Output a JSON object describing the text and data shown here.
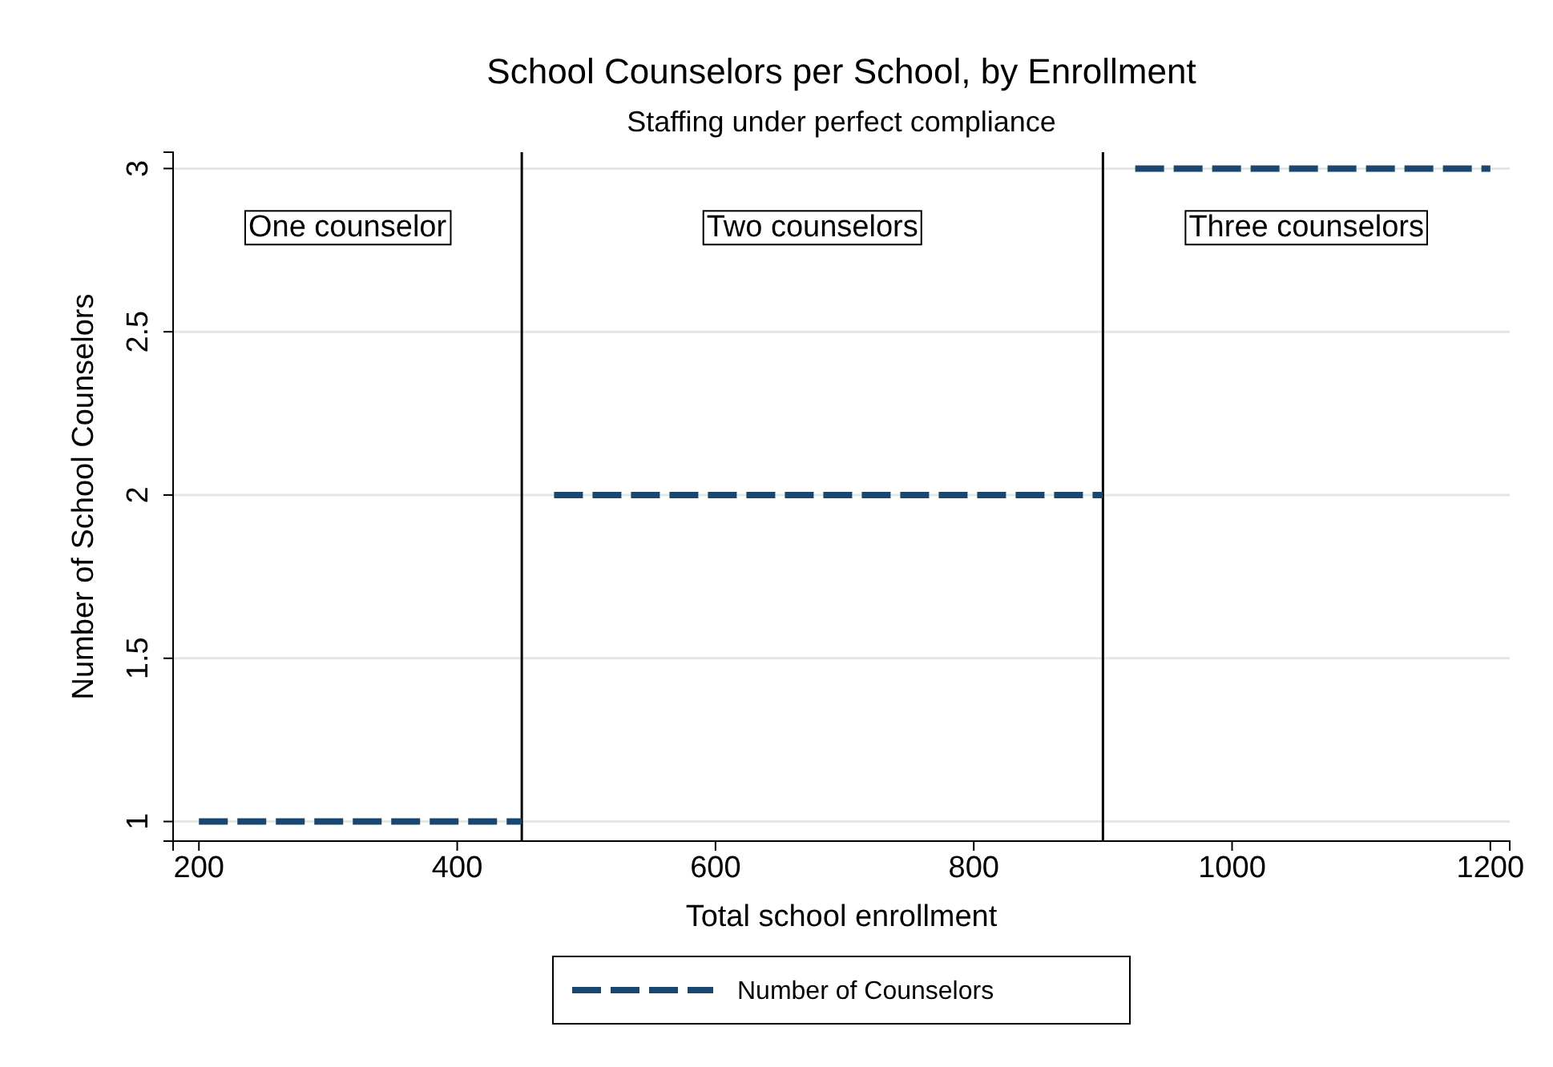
{
  "chart_data": {
    "type": "line",
    "title": "School Counselors per School, by Enrollment",
    "subtitle": "Staffing under perfect compliance",
    "xlabel": "Total school enrollment",
    "ylabel": "Number of School Counselors",
    "series": [
      {
        "name": "Number of Counselors",
        "color": "#1a476f",
        "x": [
          200,
          450,
          460,
          475,
          900,
          910,
          925,
          1200
        ],
        "values": [
          1,
          1,
          null,
          2,
          2,
          null,
          3,
          3
        ]
      }
    ],
    "annotations": [
      "One counselor",
      "Two counselors",
      "Three counselors"
    ],
    "ref_lines": [
      {
        "axis": "x",
        "value": 450,
        "color": "#000000"
      },
      {
        "axis": "x",
        "value": 900,
        "color": "#000000"
      }
    ],
    "xlim": [
      180,
      1215
    ],
    "xticks": [
      200,
      400,
      600,
      800,
      1000,
      1200
    ],
    "ylim": [
      0.94,
      3.05
    ],
    "yticks": [
      1,
      1.5,
      2,
      2.5,
      3
    ],
    "grid": "y",
    "legend": "bottom",
    "line_style": "dashed",
    "marker": "none"
  }
}
